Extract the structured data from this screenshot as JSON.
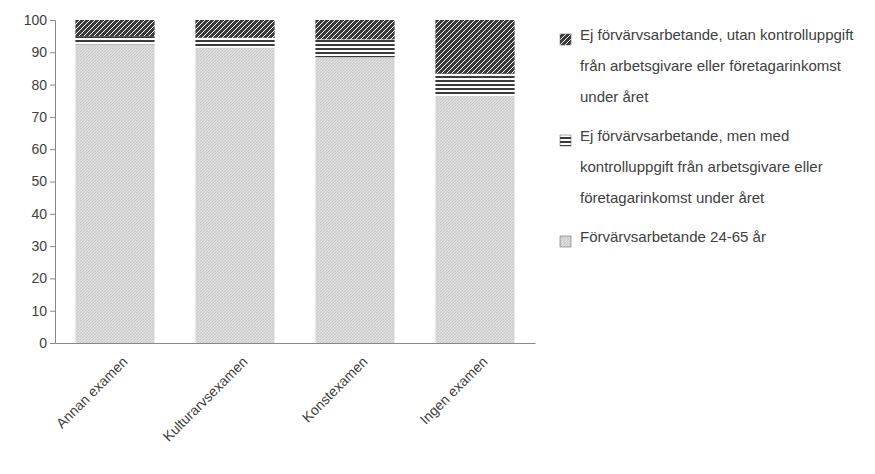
{
  "chart_data": {
    "type": "bar",
    "stacked": true,
    "legend": "right",
    "grid": false,
    "categories": [
      "Annan examen",
      "Kulturarvsexamen",
      "Konstexamen",
      "Ingen examen"
    ],
    "series": [
      {
        "name": "Förvärvsarbetande 24-65 år",
        "color": "#c8c8c8",
        "values": [
          92.5,
          91.5,
          88.5,
          76.5
        ]
      },
      {
        "name": "Ej förvärvsarbetande, men med kontrolluppgift från arbetsgivare eller företagarinkomst under året",
        "color": "#3a3a3a",
        "values": [
          2.5,
          3,
          5.5,
          7
        ]
      },
      {
        "name": "Ej förvärvsarbetande, utan kontrolluppgift från arbetsgivare eller företagarinkomst under året",
        "color": "#3a3a3a",
        "values": [
          5,
          5.5,
          6,
          16.5
        ]
      }
    ],
    "ylim": [
      0,
      100
    ],
    "yticks": [
      0,
      10,
      20,
      30,
      40,
      50,
      60,
      70,
      80,
      90,
      100
    ]
  }
}
